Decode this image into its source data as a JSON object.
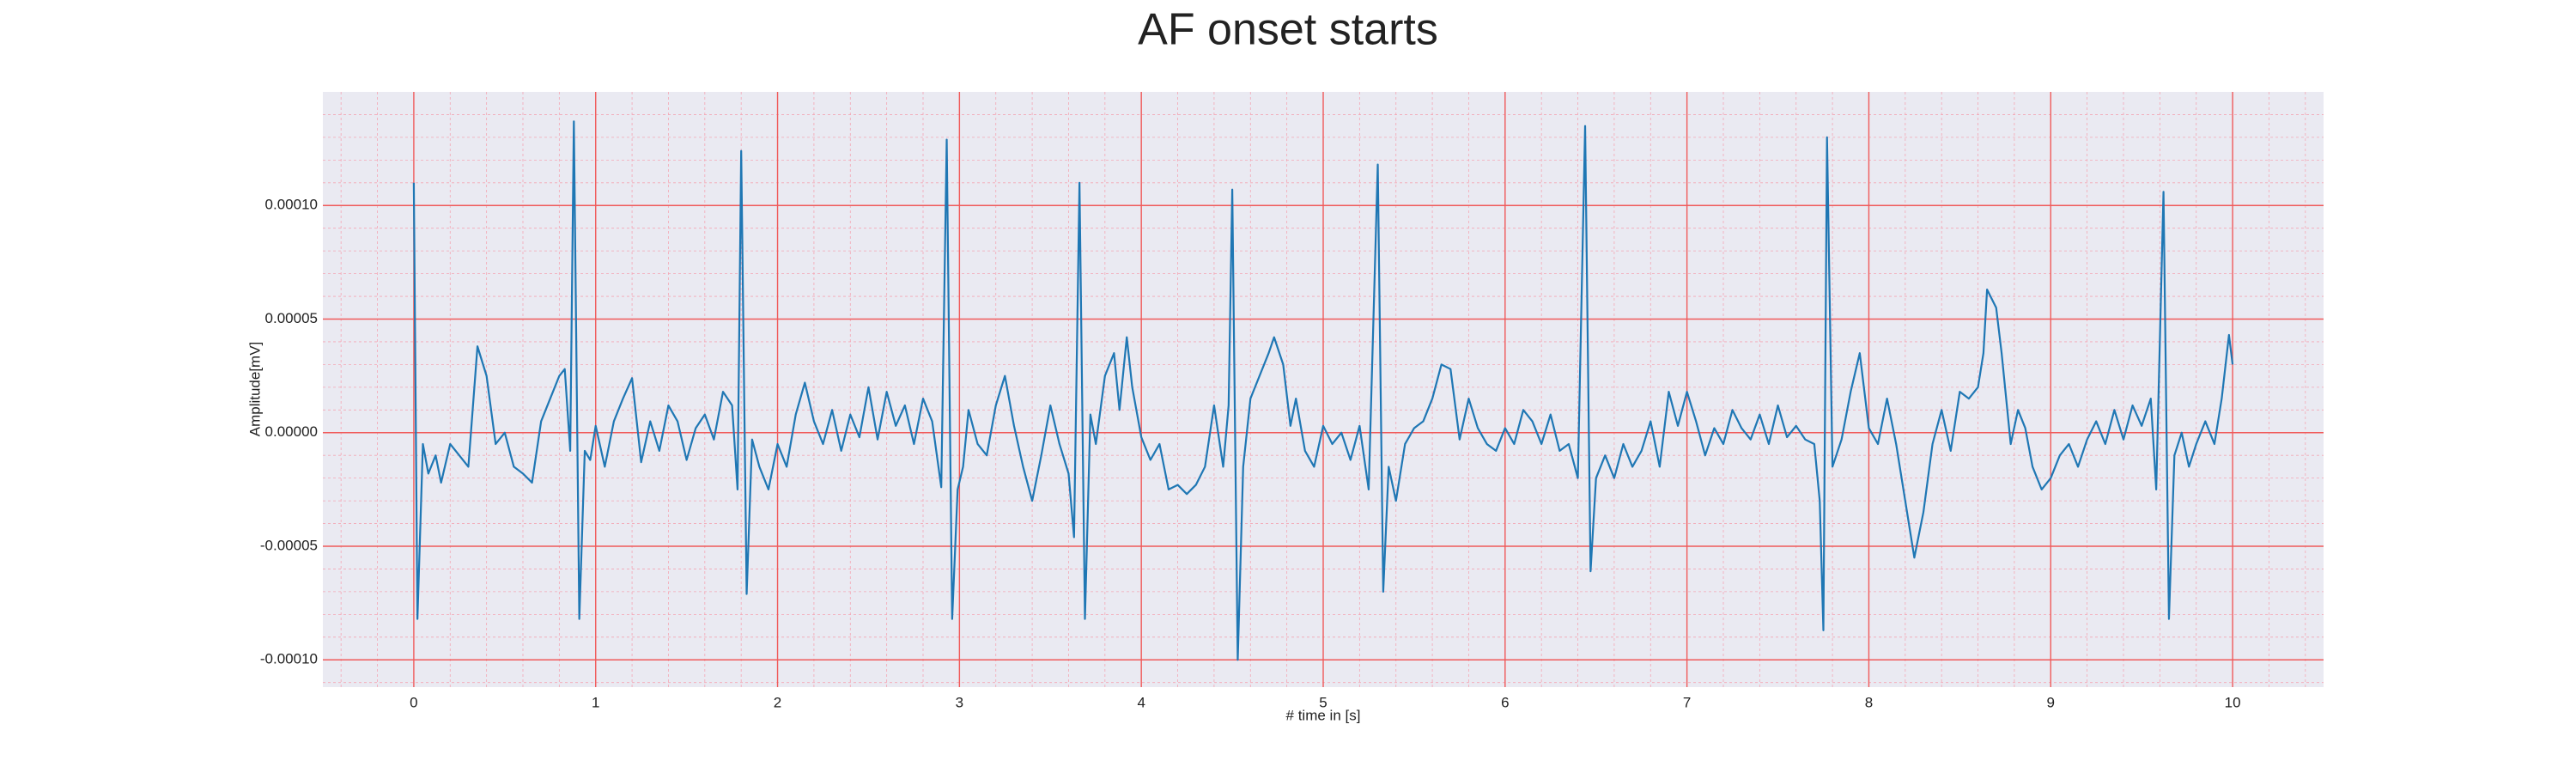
{
  "chart_data": {
    "type": "line",
    "title": "AF onset starts",
    "xlabel": "# time in [s]",
    "ylabel": "Amplitude[mV]",
    "xlim": [
      -0.5,
      10.5
    ],
    "ylim": [
      -0.000112,
      0.00015
    ],
    "xticks": [
      0,
      1,
      2,
      3,
      4,
      5,
      6,
      7,
      8,
      9,
      10
    ],
    "yticks": [
      {
        "value": -0.0001,
        "label": "-0.00010"
      },
      {
        "value": -5e-05,
        "label": "-0.00005"
      },
      {
        "value": 0,
        "label": "0.00000"
      },
      {
        "value": 5e-05,
        "label": "0.00005"
      },
      {
        "value": 0.0001,
        "label": "0.00010"
      }
    ],
    "grid": true,
    "x": [
      0.0,
      0.02,
      0.05,
      0.08,
      0.12,
      0.15,
      0.2,
      0.25,
      0.3,
      0.35,
      0.4,
      0.45,
      0.5,
      0.55,
      0.6,
      0.65,
      0.7,
      0.75,
      0.8,
      0.83,
      0.86,
      0.88,
      0.91,
      0.94,
      0.97,
      1.0,
      1.05,
      1.1,
      1.15,
      1.2,
      1.25,
      1.3,
      1.35,
      1.4,
      1.45,
      1.5,
      1.55,
      1.6,
      1.65,
      1.7,
      1.75,
      1.78,
      1.8,
      1.83,
      1.86,
      1.9,
      1.95,
      2.0,
      2.05,
      2.1,
      2.15,
      2.2,
      2.25,
      2.3,
      2.35,
      2.4,
      2.45,
      2.5,
      2.55,
      2.6,
      2.65,
      2.7,
      2.75,
      2.8,
      2.85,
      2.9,
      2.93,
      2.96,
      2.99,
      3.02,
      3.05,
      3.1,
      3.15,
      3.2,
      3.25,
      3.3,
      3.35,
      3.4,
      3.45,
      3.5,
      3.55,
      3.6,
      3.63,
      3.66,
      3.69,
      3.72,
      3.75,
      3.8,
      3.85,
      3.88,
      3.92,
      3.95,
      4.0,
      4.05,
      4.1,
      4.15,
      4.2,
      4.25,
      4.3,
      4.35,
      4.4,
      4.45,
      4.48,
      4.5,
      4.53,
      4.56,
      4.6,
      4.65,
      4.7,
      4.73,
      4.78,
      4.82,
      4.85,
      4.9,
      4.95,
      5.0,
      5.05,
      5.1,
      5.15,
      5.2,
      5.25,
      5.3,
      5.33,
      5.36,
      5.4,
      5.45,
      5.5,
      5.55,
      5.6,
      5.65,
      5.7,
      5.75,
      5.8,
      5.85,
      5.9,
      5.95,
      6.0,
      6.05,
      6.1,
      6.15,
      6.2,
      6.25,
      6.3,
      6.35,
      6.4,
      6.44,
      6.47,
      6.5,
      6.55,
      6.6,
      6.65,
      6.7,
      6.75,
      6.8,
      6.85,
      6.9,
      6.95,
      7.0,
      7.05,
      7.1,
      7.15,
      7.2,
      7.25,
      7.3,
      7.35,
      7.4,
      7.45,
      7.5,
      7.55,
      7.6,
      7.65,
      7.7,
      7.73,
      7.75,
      7.77,
      7.8,
      7.85,
      7.9,
      7.95,
      8.0,
      8.05,
      8.1,
      8.15,
      8.2,
      8.25,
      8.3,
      8.35,
      8.4,
      8.45,
      8.5,
      8.55,
      8.6,
      8.63,
      8.65,
      8.7,
      8.73,
      8.78,
      8.82,
      8.86,
      8.9,
      8.95,
      9.0,
      9.05,
      9.1,
      9.15,
      9.2,
      9.25,
      9.3,
      9.35,
      9.4,
      9.45,
      9.5,
      9.55,
      9.58,
      9.62,
      9.65,
      9.68,
      9.72,
      9.76,
      9.8,
      9.85,
      9.9,
      9.94,
      9.98,
      10.0
    ],
    "series": [
      {
        "color": "#1f77b4",
        "values": [
          0.00011,
          -8.2e-05,
          -5e-06,
          -1.8e-05,
          -1e-05,
          -2.2e-05,
          -5e-06,
          -1e-05,
          -1.5e-05,
          3.8e-05,
          2.5e-05,
          -5e-06,
          0,
          -1.5e-05,
          -1.8e-05,
          -2.2e-05,
          5e-06,
          1.5e-05,
          2.5e-05,
          2.8e-05,
          -8e-06,
          0.000137,
          -8.2e-05,
          -8e-06,
          -1.2e-05,
          3e-06,
          -1.5e-05,
          5e-06,
          1.5e-05,
          2.4e-05,
          -1.3e-05,
          5e-06,
          -8e-06,
          1.2e-05,
          5e-06,
          -1.2e-05,
          2e-06,
          8e-06,
          -3e-06,
          1.8e-05,
          1.2e-05,
          -2.5e-05,
          0.000124,
          -7.1e-05,
          -3e-06,
          -1.5e-05,
          -2.5e-05,
          -5e-06,
          -1.5e-05,
          8e-06,
          2.2e-05,
          5e-06,
          -5e-06,
          1e-05,
          -8e-06,
          8e-06,
          -2e-06,
          2e-05,
          -3e-06,
          1.8e-05,
          3e-06,
          1.2e-05,
          -5e-06,
          1.5e-05,
          5e-06,
          -2.4e-05,
          0.000129,
          -8.2e-05,
          -2.5e-05,
          -1.5e-05,
          1e-05,
          -5e-06,
          -1e-05,
          1.2e-05,
          2.5e-05,
          3e-06,
          -1.5e-05,
          -3e-05,
          -1e-05,
          1.2e-05,
          -5e-06,
          -1.8e-05,
          -4.6e-05,
          0.00011,
          -8.2e-05,
          8e-06,
          -5e-06,
          2.5e-05,
          3.5e-05,
          1e-05,
          4.2e-05,
          2e-05,
          -2e-06,
          -1.2e-05,
          -5e-06,
          -2.5e-05,
          -2.3e-05,
          -2.7e-05,
          -2.3e-05,
          -1.5e-05,
          1.2e-05,
          -1.5e-05,
          1.2e-05,
          0.000107,
          -0.0001,
          -1.5e-05,
          1.5e-05,
          2.5e-05,
          3.5e-05,
          4.2e-05,
          3e-05,
          3e-06,
          1.5e-05,
          -8e-06,
          -1.5e-05,
          3e-06,
          -5e-06,
          0,
          -1.2e-05,
          3e-06,
          -2.5e-05,
          0.000118,
          -7e-05,
          -1.5e-05,
          -3e-05,
          -5e-06,
          2e-06,
          5e-06,
          1.5e-05,
          3e-05,
          2.8e-05,
          -3e-06,
          1.5e-05,
          2e-06,
          -5e-06,
          -8e-06,
          2e-06,
          -5e-06,
          1e-05,
          5e-06,
          -5e-06,
          8e-06,
          -8e-06,
          -5e-06,
          -2e-05,
          0.000135,
          -6.1e-05,
          -2e-05,
          -1e-05,
          -2e-05,
          -5e-06,
          -1.5e-05,
          -8e-06,
          5e-06,
          -1.5e-05,
          1.8e-05,
          3e-06,
          1.8e-05,
          5e-06,
          -1e-05,
          2e-06,
          -5e-06,
          1e-05,
          2e-06,
          -3e-06,
          8e-06,
          -5e-06,
          1.2e-05,
          -2e-06,
          3e-06,
          -3e-06,
          -5e-06,
          -3e-05,
          -8.7e-05,
          0.00013,
          -1.5e-05,
          -3e-06,
          1.8e-05,
          3.5e-05,
          2e-06,
          -5e-06,
          1.5e-05,
          -5e-06,
          -3e-05,
          -5.5e-05,
          -3.5e-05,
          -5e-06,
          1e-05,
          -8e-06,
          1.8e-05,
          1.5e-05,
          2e-05,
          3.5e-05,
          6.3e-05,
          5.5e-05,
          3.5e-05,
          -5e-06,
          1e-05,
          2e-06,
          -1.5e-05,
          -2.5e-05,
          -2e-05,
          -1e-05,
          -5e-06,
          -1.5e-05,
          -3e-06,
          5e-06,
          -5e-06,
          1e-05,
          -3e-06,
          1.2e-05,
          3e-06,
          1.5e-05,
          -2.5e-05,
          0.000106,
          -8.2e-05,
          -1e-05,
          0,
          -1.5e-05,
          -5e-06,
          5e-06,
          -5e-06,
          1.5e-05,
          4.3e-05,
          3e-05
        ]
      }
    ]
  }
}
